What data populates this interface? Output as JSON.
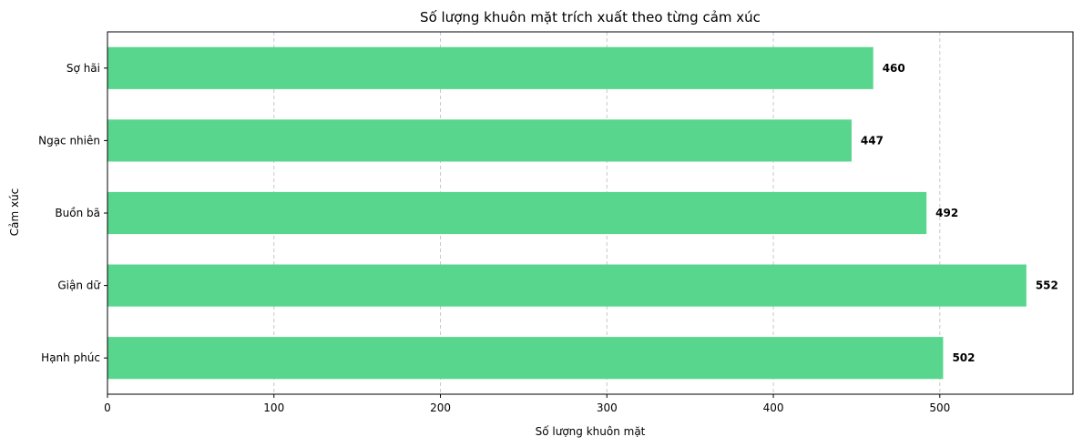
{
  "chart_data": {
    "type": "bar",
    "orientation": "horizontal",
    "title": "Số lượng khuôn mặt trích xuất theo từng cảm xúc",
    "xlabel": "Số lượng khuôn mặt",
    "ylabel": "Cảm xúc",
    "categories": [
      "Hạnh phúc",
      "Giận dữ",
      "Buồn bã",
      "Ngạc nhiên",
      "Sợ hãi"
    ],
    "values": [
      502,
      552,
      492,
      447,
      460
    ],
    "xlim": [
      0,
      580
    ],
    "xticks": [
      0,
      100,
      200,
      300,
      400,
      500
    ],
    "grid": "x, dashed",
    "bar_color": "#58d68d",
    "data_labels": true
  }
}
